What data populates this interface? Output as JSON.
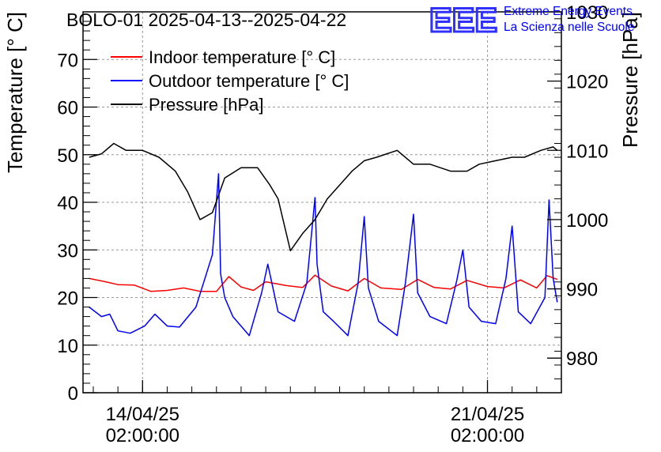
{
  "chart_data": {
    "type": "line",
    "title": "BOLO-01 2025-04-13--2025-04-22",
    "ylabel": "Temperature [° C]",
    "y2label": "Pressure [hPa]",
    "xlabel": "",
    "ylim": [
      0,
      80
    ],
    "y2lim": [
      975,
      1030
    ],
    "xlim": [
      "2025-04-12 21:00:00",
      "2025-04-22 14:00:00"
    ],
    "grid": true,
    "legend_position": "top-left",
    "x_ticks": [
      {
        "x": "2025-04-14 02:00:00",
        "line1": "14/04/25",
        "line2": "02:00:00"
      },
      {
        "x": "2025-04-21 02:00:00",
        "line1": "21/04/25",
        "line2": "02:00:00"
      }
    ],
    "y_ticks": [
      0,
      10,
      20,
      30,
      40,
      50,
      60,
      70
    ],
    "y2_ticks": [
      980,
      990,
      1000,
      1010,
      1020,
      1030
    ],
    "series": [
      {
        "name": "Indoor temperature [° C]",
        "axis": "left",
        "color": "#ff0000",
        "x": [
          "2025-04-13 00:00",
          "2025-04-13 08:00",
          "2025-04-13 14:00",
          "2025-04-13 22:00",
          "2025-04-14 06:00",
          "2025-04-14 14:00",
          "2025-04-14 22:00",
          "2025-04-15 06:00",
          "2025-04-15 14:00",
          "2025-04-15 20:00",
          "2025-04-16 02:00",
          "2025-04-16 08:00",
          "2025-04-16 14:00",
          "2025-04-17 00:00",
          "2025-04-17 08:00",
          "2025-04-17 14:00",
          "2025-04-17 22:00",
          "2025-04-18 06:00",
          "2025-04-18 14:00",
          "2025-04-18 22:00",
          "2025-04-19 08:00",
          "2025-04-19 16:00",
          "2025-04-20 00:00",
          "2025-04-20 08:00",
          "2025-04-20 16:00",
          "2025-04-21 02:00",
          "2025-04-21 10:00",
          "2025-04-21 18:00",
          "2025-04-22 02:00",
          "2025-04-22 07:00",
          "2025-04-22 12:00"
        ],
        "y": [
          24.0,
          23.3,
          22.7,
          22.6,
          21.3,
          21.5,
          22.0,
          21.3,
          21.3,
          24.4,
          22.2,
          21.5,
          23.3,
          22.5,
          22.1,
          24.7,
          22.4,
          21.4,
          24.0,
          22.0,
          21.7,
          23.8,
          22.1,
          21.8,
          23.6,
          22.3,
          22.0,
          23.7,
          22.0,
          24.6,
          23.8
        ]
      },
      {
        "name": "Outdoor temperature [° C]",
        "axis": "left",
        "color": "#0000ff",
        "x": [
          "2025-04-13 00:00",
          "2025-04-13 06:00",
          "2025-04-13 10:00",
          "2025-04-13 14:00",
          "2025-04-13 20:00",
          "2025-04-14 03:00",
          "2025-04-14 08:00",
          "2025-04-14 14:00",
          "2025-04-14 20:00",
          "2025-04-15 04:00",
          "2025-04-15 12:00",
          "2025-04-15 15:00",
          "2025-04-15 16:00",
          "2025-04-15 18:00",
          "2025-04-15 22:00",
          "2025-04-16 06:00",
          "2025-04-16 12:00",
          "2025-04-16 15:00",
          "2025-04-16 20:00",
          "2025-04-17 04:00",
          "2025-04-17 10:00",
          "2025-04-17 14:00",
          "2025-04-17 15:00",
          "2025-04-17 18:00",
          "2025-04-17 23:00",
          "2025-04-18 06:00",
          "2025-04-18 11:00",
          "2025-04-18 14:00",
          "2025-04-18 16:00",
          "2025-04-18 21:00",
          "2025-04-19 06:00",
          "2025-04-19 10:00",
          "2025-04-19 14:00",
          "2025-04-19 16:00",
          "2025-04-19 22:00",
          "2025-04-20 06:00",
          "2025-04-20 11:00",
          "2025-04-20 14:00",
          "2025-04-20 17:00",
          "2025-04-20 23:00",
          "2025-04-21 06:00",
          "2025-04-21 11:00",
          "2025-04-21 14:00",
          "2025-04-21 17:00",
          "2025-04-21 23:00",
          "2025-04-22 06:00",
          "2025-04-22 08:00",
          "2025-04-22 10:00",
          "2025-04-22 12:00"
        ],
        "y": [
          18.0,
          16.0,
          16.5,
          13.0,
          12.5,
          14.0,
          16.5,
          14.0,
          13.8,
          18.0,
          29.0,
          46.0,
          25.0,
          20.0,
          16.0,
          12.0,
          21.0,
          27.0,
          17.0,
          15.0,
          23.0,
          41.0,
          27.0,
          17.0,
          15.0,
          12.0,
          23.0,
          37.0,
          22.0,
          15.0,
          12.0,
          23.0,
          37.5,
          21.0,
          16.0,
          14.5,
          23.5,
          30.0,
          18.0,
          15.0,
          14.5,
          24.0,
          35.0,
          17.0,
          14.5,
          20.0,
          40.5,
          24.0,
          19.0
        ]
      },
      {
        "name": "Pressure [hPa]",
        "axis": "right",
        "color": "#000000",
        "x": [
          "2025-04-13 00:00",
          "2025-04-13 06:00",
          "2025-04-13 12:00",
          "2025-04-13 18:00",
          "2025-04-14 02:00",
          "2025-04-14 10:00",
          "2025-04-14 18:00",
          "2025-04-15 00:00",
          "2025-04-15 06:00",
          "2025-04-15 12:00",
          "2025-04-15 18:00",
          "2025-04-16 02:00",
          "2025-04-16 10:00",
          "2025-04-16 16:00",
          "2025-04-16 20:00",
          "2025-04-17 02:00",
          "2025-04-17 08:00",
          "2025-04-17 14:00",
          "2025-04-17 20:00",
          "2025-04-18 02:00",
          "2025-04-18 08:00",
          "2025-04-18 14:00",
          "2025-04-18 20:00",
          "2025-04-19 06:00",
          "2025-04-19 14:00",
          "2025-04-19 22:00",
          "2025-04-20 08:00",
          "2025-04-20 16:00",
          "2025-04-20 22:00",
          "2025-04-21 06:00",
          "2025-04-21 14:00",
          "2025-04-21 20:00",
          "2025-04-22 04:00",
          "2025-04-22 10:00",
          "2025-04-22 12:00"
        ],
        "y": [
          1009.0,
          1009.5,
          1011.0,
          1010.0,
          1010.0,
          1009.0,
          1007.0,
          1004.0,
          1000.0,
          1001.0,
          1006.0,
          1007.5,
          1007.5,
          1005.0,
          1003.0,
          995.5,
          998.0,
          1000.0,
          1003.0,
          1005.0,
          1007.0,
          1008.5,
          1009.0,
          1010.0,
          1008.0,
          1008.0,
          1007.0,
          1007.0,
          1008.0,
          1008.5,
          1009.0,
          1009.0,
          1010.0,
          1010.5,
          1010.0
        ]
      }
    ]
  },
  "logo": {
    "letters": "EEE",
    "line1": "Extreme Energy Events",
    "line2": "La Scienza nelle Scuole",
    "color": "#0000ff"
  }
}
